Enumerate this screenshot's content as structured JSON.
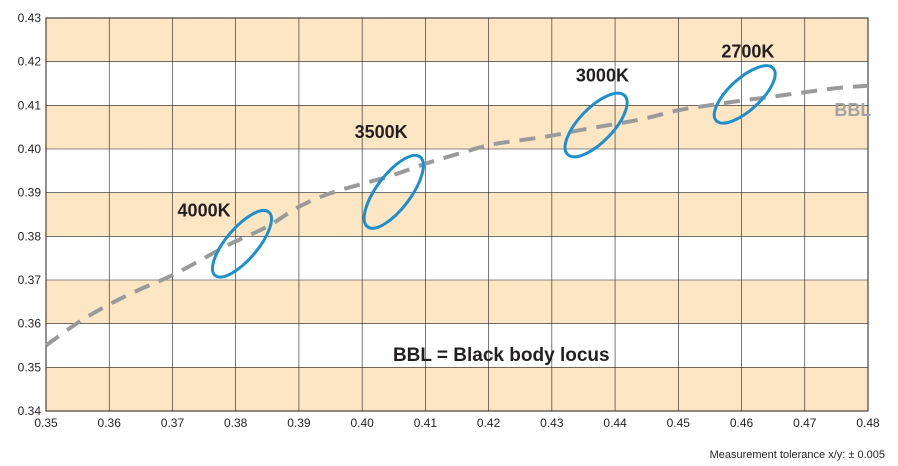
{
  "chart_data": {
    "type": "scatter",
    "x": {
      "min": 0.35,
      "max": 0.48,
      "ticks": [
        "0.35",
        "0.36",
        "0.37",
        "0.38",
        "0.39",
        "0.40",
        "0.41",
        "0.42",
        "0.43",
        "0.44",
        "0.45",
        "0.46",
        "0.47",
        "0.48"
      ]
    },
    "y": {
      "min": 0.34,
      "max": 0.43,
      "ticks": [
        "0.34",
        "0.35",
        "0.36",
        "0.37",
        "0.38",
        "0.39",
        "0.40",
        "0.41",
        "0.42",
        "0.43"
      ]
    },
    "grid": true,
    "band_color": "#fce6c4",
    "curve_color": "#9a9a9a",
    "ellipse_color": "#1d8fcf",
    "curve_label": "BBL",
    "curve_label_anchor": [
      0.475,
      0.4076
    ],
    "curve": [
      [
        0.35,
        0.355
      ],
      [
        0.355,
        0.3603
      ],
      [
        0.36,
        0.3645
      ],
      [
        0.365,
        0.368
      ],
      [
        0.37,
        0.371
      ],
      [
        0.375,
        0.375
      ],
      [
        0.38,
        0.379
      ],
      [
        0.385,
        0.382
      ],
      [
        0.39,
        0.387
      ],
      [
        0.395,
        0.39
      ],
      [
        0.4,
        0.392
      ],
      [
        0.405,
        0.394
      ],
      [
        0.41,
        0.3967
      ],
      [
        0.415,
        0.3988
      ],
      [
        0.42,
        0.401
      ],
      [
        0.425,
        0.402
      ],
      [
        0.43,
        0.403
      ],
      [
        0.435,
        0.4045
      ],
      [
        0.44,
        0.4057
      ],
      [
        0.445,
        0.407
      ],
      [
        0.45,
        0.409
      ],
      [
        0.455,
        0.41
      ],
      [
        0.46,
        0.4111
      ],
      [
        0.465,
        0.412
      ],
      [
        0.47,
        0.413
      ],
      [
        0.475,
        0.414
      ],
      [
        0.48,
        0.4145
      ]
    ],
    "ellipses": [
      {
        "label": "4000K",
        "cx": 0.381,
        "cy": 0.3783,
        "p1": [
          0.385,
          0.3855
        ],
        "p2": [
          0.3765,
          0.371
        ],
        "minor": 0.0025,
        "label_anchor": [
          0.375,
          0.3845
        ]
      },
      {
        "label": "3500K",
        "cx": 0.405,
        "cy": 0.3902,
        "p1": [
          0.4093,
          0.399
        ],
        "p2": [
          0.401,
          0.383
        ],
        "minor": 0.0027,
        "label_anchor": [
          0.403,
          0.4025
        ]
      },
      {
        "label": "3000K",
        "cx": 0.437,
        "cy": 0.4055,
        "p1": [
          0.441,
          0.412
        ],
        "p2": [
          0.432,
          0.3985
        ],
        "minor": 0.0027,
        "label_anchor": [
          0.438,
          0.4155
        ]
      },
      {
        "label": "2700K",
        "cx": 0.4605,
        "cy": 0.4125,
        "p1": [
          0.465,
          0.418
        ],
        "p2": [
          0.456,
          0.406
        ],
        "minor": 0.0025,
        "label_anchor": [
          0.461,
          0.421
        ]
      }
    ],
    "annotation": "BBL = Black body locus",
    "annotation_anchor": [
      0.422,
      0.3515
    ]
  },
  "footer": "Measurement tolerance x/y: ± 0.005"
}
